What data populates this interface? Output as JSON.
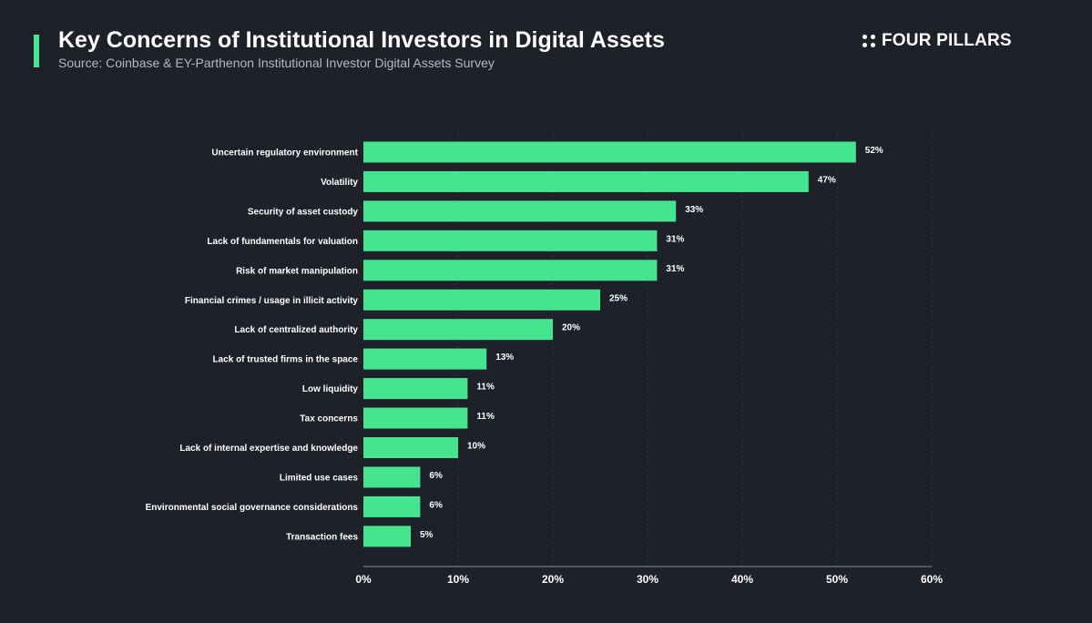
{
  "header": {
    "title": "Key Concerns of Institutional Investors in Digital Assets",
    "subtitle": "Source: Coinbase & EY-Parthenon Institutional Investor Digital Assets Survey",
    "brand": "FOUR PILLARS"
  },
  "colors": {
    "background": "#1e2129",
    "bar": "#45e58f",
    "accent": "#45e58f",
    "grid": "#3a3e47"
  },
  "chart_data": {
    "type": "bar",
    "orientation": "horizontal",
    "title": "Key Concerns of Institutional Investors in Digital Assets",
    "categories": [
      "Uncertain regulatory environment",
      "Volatility",
      "Security of asset custody",
      "Lack of fundamentals for valuation",
      "Risk of market manipulation",
      "Financial crimes / usage in illicit activity",
      "Lack of centralized authority",
      "Lack of trusted firms in the space",
      "Low liquidity",
      "Tax concerns",
      "Lack of internal expertise and knowledge",
      "Limited use cases",
      "Environmental social governance considerations",
      "Transaction fees"
    ],
    "values": [
      52,
      47,
      33,
      31,
      31,
      25,
      20,
      13,
      11,
      11,
      10,
      6,
      6,
      5
    ],
    "value_labels": [
      "52%",
      "47%",
      "33%",
      "31%",
      "31%",
      "25%",
      "20%",
      "13%",
      "11%",
      "11%",
      "10%",
      "6%",
      "6%",
      "5%"
    ],
    "xlim": [
      0,
      60
    ],
    "xticks": [
      0,
      10,
      20,
      30,
      40,
      50,
      60
    ],
    "xtick_labels": [
      "0%",
      "10%",
      "20%",
      "30%",
      "40%",
      "50%",
      "60%"
    ],
    "xlabel": "",
    "ylabel": "",
    "grid": "vertical dashed",
    "legend": "none"
  }
}
